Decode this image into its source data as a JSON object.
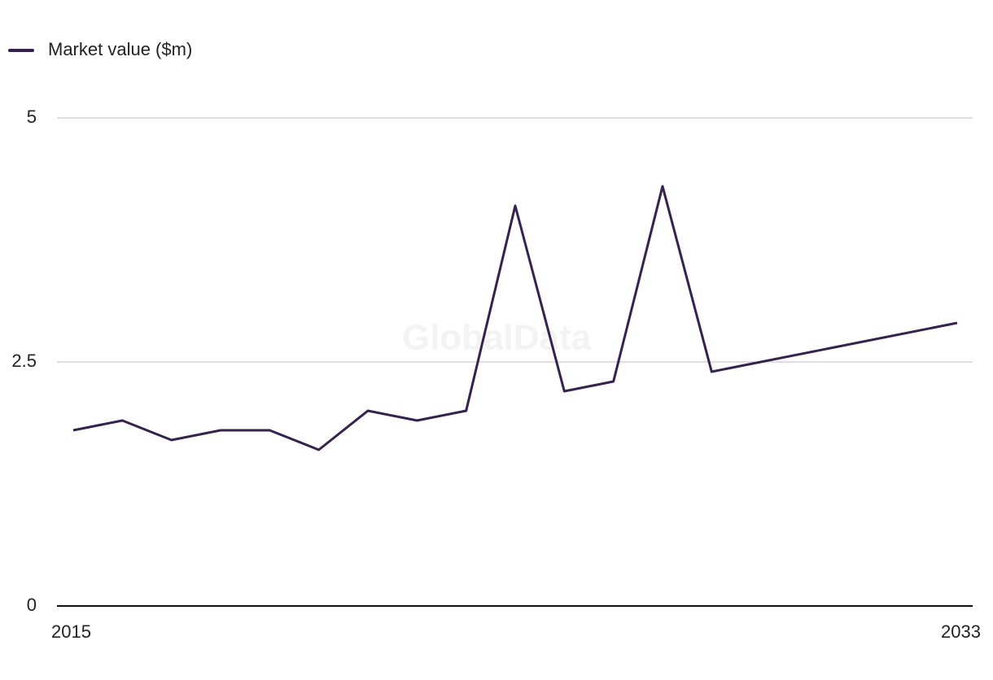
{
  "chart_data": {
    "type": "line",
    "watermark": "GlobalData",
    "x": [
      2015,
      2016,
      2017,
      2018,
      2019,
      2020,
      2021,
      2022,
      2023,
      2024,
      2025,
      2026,
      2027,
      2028,
      2033
    ],
    "series": [
      {
        "name": "Market value ($m)",
        "color": "#35224f",
        "values": [
          1.8,
          1.9,
          1.7,
          1.8,
          1.8,
          1.6,
          2.0,
          1.9,
          2.0,
          4.1,
          2.2,
          2.3,
          4.3,
          2.4,
          2.9
        ]
      }
    ],
    "xlim": [
      2015,
      2033
    ],
    "xticks": [
      2015,
      2033
    ],
    "ylim": [
      0,
      5
    ],
    "yticks": [
      0,
      2.5,
      5
    ],
    "grid": true,
    "legend": "top-left"
  }
}
